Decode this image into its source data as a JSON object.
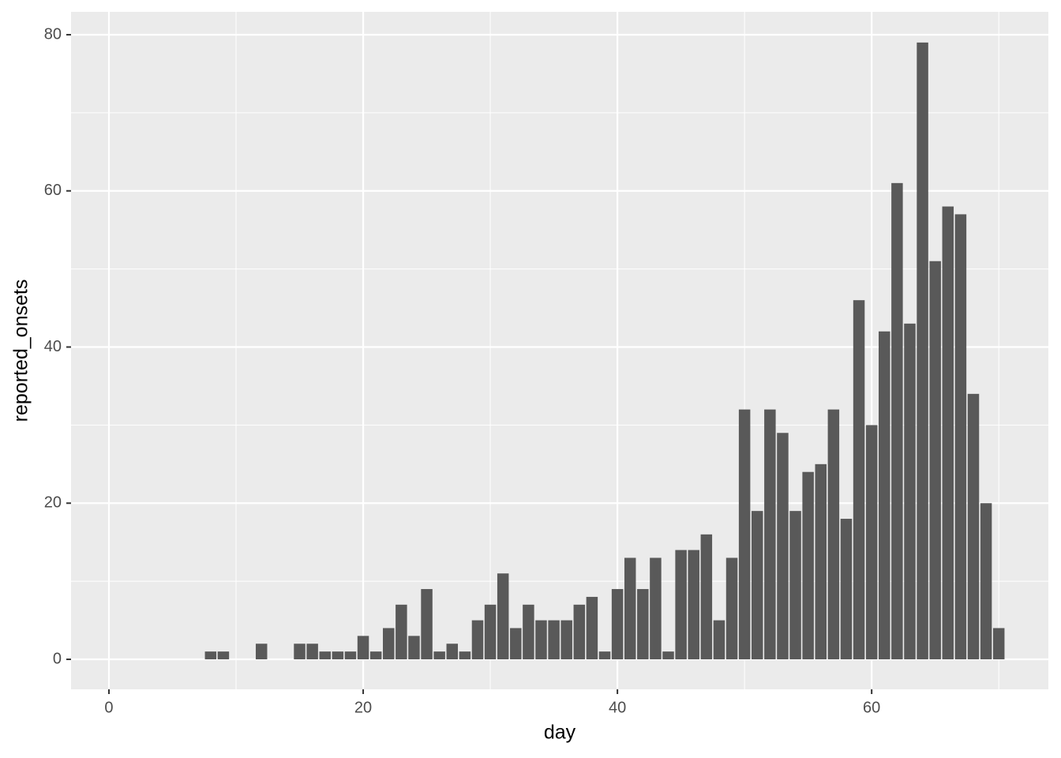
{
  "chart_data": {
    "type": "bar",
    "x": [
      8,
      9,
      10,
      11,
      12,
      13,
      14,
      15,
      16,
      17,
      18,
      19,
      20,
      21,
      22,
      23,
      24,
      25,
      26,
      27,
      28,
      29,
      30,
      31,
      32,
      33,
      34,
      35,
      36,
      37,
      38,
      39,
      40,
      41,
      42,
      43,
      44,
      45,
      46,
      47,
      48,
      49,
      50,
      51,
      52,
      53,
      54,
      55,
      56,
      57,
      58,
      59,
      60,
      61,
      62,
      63,
      64,
      65,
      66,
      67,
      68,
      69,
      70
    ],
    "values": [
      1,
      1,
      0,
      0,
      2,
      0,
      0,
      2,
      2,
      1,
      1,
      1,
      3,
      1,
      4,
      7,
      3,
      9,
      1,
      2,
      1,
      5,
      7,
      11,
      4,
      7,
      5,
      5,
      5,
      7,
      8,
      1,
      9,
      13,
      9,
      13,
      1,
      14,
      14,
      16,
      5,
      13,
      32,
      19,
      32,
      29,
      19,
      24,
      25,
      32,
      18,
      46,
      30,
      42,
      61,
      43,
      79,
      51,
      58,
      57,
      34,
      20,
      4
    ],
    "color": "#595959",
    "x_label": "day",
    "y_label": "reported_onsets",
    "xlim": [
      -2.98,
      73.9
    ],
    "ylim": [
      -3.84,
      82.93
    ],
    "xticks": [
      0,
      20,
      40,
      60
    ],
    "yticks": [
      0,
      20,
      40,
      60,
      80
    ],
    "x_minor_ticks": [
      10,
      30,
      50,
      70
    ],
    "y_minor_ticks": [
      10,
      30,
      50,
      70
    ],
    "grid": true
  }
}
